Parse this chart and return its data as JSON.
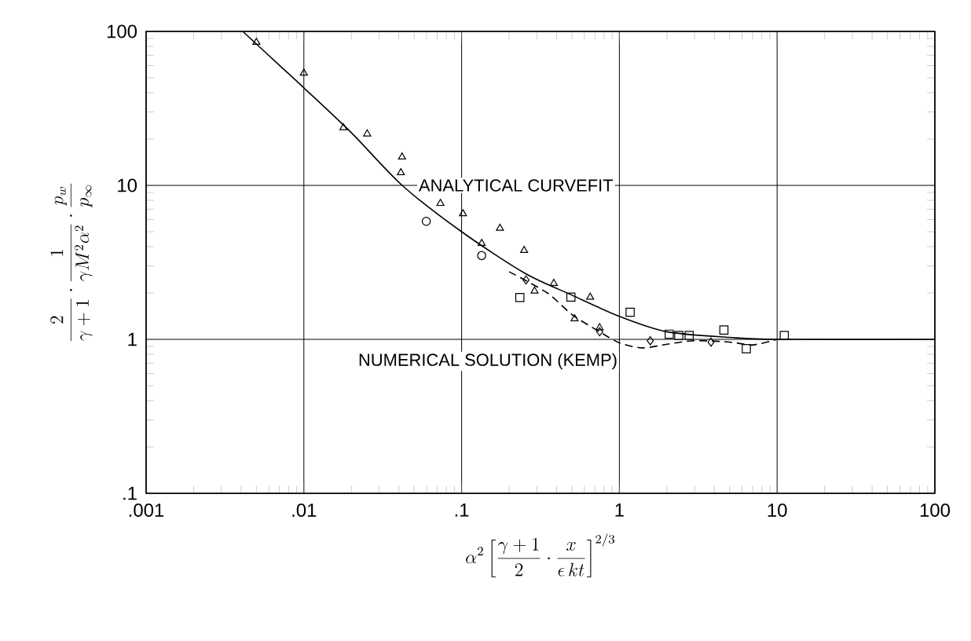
{
  "chart_data": {
    "type": "scatter",
    "xlabel": "\\alpha^2\\left[\\frac{\\gamma+1}{2}\\cdot\\frac{x}{\\epsilon\\,k t}\\right]^{2/3}",
    "ylabel": "\\frac{2}{\\gamma+1}\\cdot\\frac{1}{\\gamma M^2\\alpha^2}\\cdot\\frac{p_w}{p_\\infty}",
    "log": "xy",
    "grid": true,
    "legend": false,
    "xlim": [
      0.001,
      100
    ],
    "ylim": [
      0.1,
      100
    ],
    "xticks": [
      {
        "value": 0.001,
        "label": ".001"
      },
      {
        "value": 0.01,
        "label": ".01"
      },
      {
        "value": 0.1,
        "label": ".1"
      },
      1,
      10,
      100
    ],
    "yticks": [
      {
        "value": 0.1,
        "label": ".1"
      },
      1,
      10,
      100
    ],
    "series": [
      {
        "name": "ANALYTICAL CURVEFIT",
        "type": "line",
        "color": "#000000",
        "marker": "none",
        "line_style": "solid",
        "x": [
          0.0041,
          0.0072,
          0.01,
          0.02,
          0.042,
          0.1,
          0.25,
          0.5,
          1,
          2,
          5,
          10,
          100
        ],
        "values": [
          100,
          58.7,
          43,
          22,
          10,
          5.0,
          2.7,
          1.94,
          1.41,
          1.12,
          1.03,
          1.0,
          1.0
        ]
      },
      {
        "name": "NUMERICAL SOLUTION (KEMP)",
        "type": "line",
        "color": "#000000",
        "marker": "none",
        "line_style": "dashed",
        "x": [
          0.2,
          0.35,
          0.5,
          0.75,
          1,
          1.4,
          2,
          3,
          5,
          7,
          10
        ],
        "values": [
          2.75,
          2.0,
          1.45,
          1.12,
          0.95,
          0.88,
          0.93,
          0.98,
          0.96,
          0.92,
          1.0
        ]
      },
      {
        "color": "#000000",
        "marker": "triangle",
        "x": [
          0.005,
          0.01,
          0.0178,
          0.0252,
          0.0419,
          0.0412,
          0.0734,
          0.102,
          0.134,
          0.175,
          0.249,
          0.384,
          0.29,
          0.653,
          0.52,
          0.75
        ],
        "values": [
          85,
          53.6,
          23.7,
          21.6,
          15.3,
          12.1,
          7.64,
          6.55,
          4.2,
          5.27,
          3.78,
          2.31,
          2.06,
          1.88,
          1.36,
          1.19
        ]
      },
      {
        "color": "#000000",
        "marker": "circle",
        "x": [
          0.0597,
          0.134
        ],
        "values": [
          5.84,
          3.5
        ]
      },
      {
        "color": "#000000",
        "marker": "diamond",
        "x": [
          0.256,
          0.75,
          1.57,
          3.81
        ],
        "values": [
          2.43,
          1.12,
          0.98,
          0.96
        ]
      },
      {
        "color": "#000000",
        "marker": "square",
        "x": [
          0.234,
          0.493,
          1.17,
          2.07,
          2.38,
          2.77,
          4.6,
          6.38,
          11.1
        ],
        "values": [
          1.87,
          1.88,
          1.5,
          1.08,
          1.06,
          1.06,
          1.15,
          0.87,
          1.06
        ]
      }
    ]
  }
}
